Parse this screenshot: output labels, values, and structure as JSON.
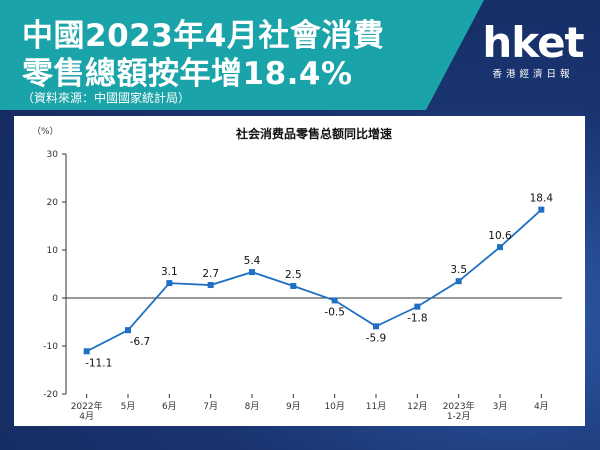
{
  "header": {
    "title_line1": "中國2023年4月社會消費",
    "title_line2": "零售總額按年增18.4%",
    "source": "（資料來源：中國國家統計局）"
  },
  "logo": {
    "name": "hket",
    "tagline": "香港經濟日報"
  },
  "colors": {
    "banner": "#1aa3a8",
    "background": "#162a5e",
    "line": "#1f6fc5"
  },
  "chart_data": {
    "type": "line",
    "title": "社会消费品零售总额同比增速",
    "ylabel": "（%）",
    "categories": [
      "2022年\n4月",
      "5月",
      "6月",
      "7月",
      "8月",
      "9月",
      "10月",
      "11月",
      "12月",
      "2023年\n1-2月",
      "3月",
      "4月"
    ],
    "values": [
      -11.1,
      -6.7,
      3.1,
      2.7,
      5.4,
      2.5,
      -0.5,
      -5.9,
      -1.8,
      3.5,
      10.6,
      18.4
    ],
    "data_labels": [
      "-11.1",
      "-6.7",
      "3.1",
      "2.7",
      "5.4",
      "2.5",
      "-0.5",
      "-5.9",
      "-1.8",
      "3.5",
      "10.6",
      "18.4"
    ],
    "ylim": [
      -20,
      30
    ],
    "yticks": [
      "30",
      "20",
      "10",
      "0",
      "-10",
      "-20"
    ],
    "ytick_values": [
      30,
      20,
      10,
      0,
      -10,
      -20
    ],
    "grid": false
  }
}
